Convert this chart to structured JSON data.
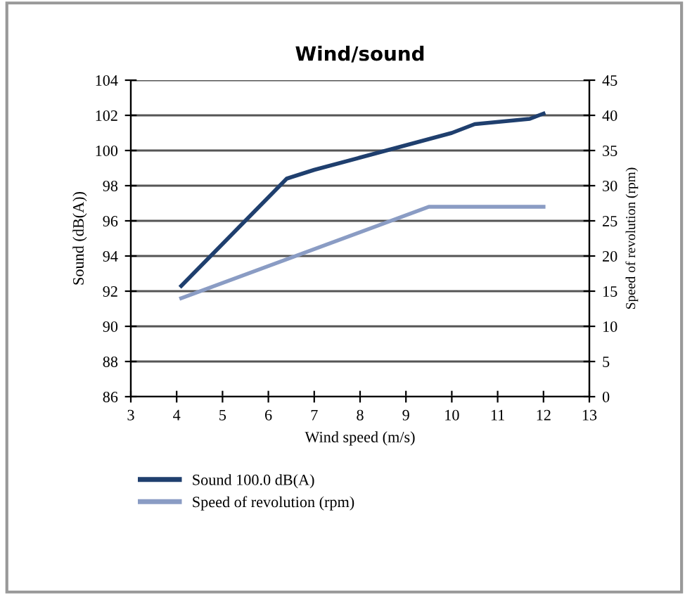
{
  "chart_data": {
    "type": "line",
    "title": "Wind/sound",
    "xlabel": "Wind speed (m/s)",
    "ylabel": "Sound (dB(A))",
    "y2label": "Speed of revolution (rpm)",
    "xlim": [
      3,
      13
    ],
    "xticks": [
      3,
      4,
      5,
      6,
      7,
      8,
      9,
      10,
      11,
      12,
      13
    ],
    "ylim": [
      86,
      104
    ],
    "yticks": [
      86,
      88,
      90,
      92,
      94,
      96,
      98,
      100,
      102,
      104
    ],
    "y2lim": [
      0,
      45
    ],
    "y2ticks": [
      0,
      5,
      10,
      15,
      20,
      25,
      30,
      35,
      40,
      45
    ],
    "grid": "y",
    "legend": "bottom",
    "marker": "none",
    "line_style": "solid",
    "series": [
      {
        "name": "Sound 100.0 dB(A)",
        "color": "#1f3f6e",
        "x": [
          4.1,
          6.4,
          7,
          8,
          9,
          10,
          10.5,
          11.7,
          12
        ],
        "values": [
          92.3,
          98.4,
          98.9,
          99.6,
          100.3,
          101.0,
          101.5,
          101.8,
          102.1
        ]
      },
      {
        "name": "Speed of revolution (rpm)",
        "color": "#8a9cc4",
        "axis": "y2",
        "x": [
          4.1,
          9.5,
          12
        ],
        "values": [
          14,
          27,
          27
        ]
      }
    ]
  }
}
